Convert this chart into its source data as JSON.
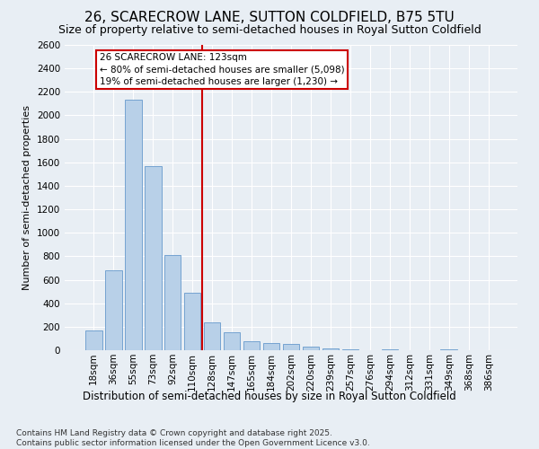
{
  "title": "26, SCARECROW LANE, SUTTON COLDFIELD, B75 5TU",
  "subtitle": "Size of property relative to semi-detached houses in Royal Sutton Coldfield",
  "xlabel": "Distribution of semi-detached houses by size in Royal Sutton Coldfield",
  "ylabel": "Number of semi-detached properties",
  "footnote": "Contains HM Land Registry data © Crown copyright and database right 2025.\nContains public sector information licensed under the Open Government Licence v3.0.",
  "categories": [
    "18sqm",
    "36sqm",
    "55sqm",
    "73sqm",
    "92sqm",
    "110sqm",
    "128sqm",
    "147sqm",
    "165sqm",
    "184sqm",
    "202sqm",
    "220sqm",
    "239sqm",
    "257sqm",
    "276sqm",
    "294sqm",
    "312sqm",
    "331sqm",
    "349sqm",
    "368sqm",
    "386sqm"
  ],
  "values": [
    170,
    680,
    2130,
    1570,
    810,
    490,
    240,
    150,
    80,
    60,
    50,
    30,
    15,
    5,
    0,
    5,
    0,
    0,
    10,
    0,
    0
  ],
  "bar_color": "#b8d0e8",
  "bar_edge_color": "#6699cc",
  "vline_color": "#cc0000",
  "vline_pos": 5.5,
  "annotation_title": "26 SCARECROW LANE: 123sqm",
  "annotation_line1": "← 80% of semi-detached houses are smaller (5,098)",
  "annotation_line2": "19% of semi-detached houses are larger (1,230) →",
  "annotation_box_color": "#cc0000",
  "ylim": [
    0,
    2600
  ],
  "yticks": [
    0,
    200,
    400,
    600,
    800,
    1000,
    1200,
    1400,
    1600,
    1800,
    2000,
    2200,
    2400,
    2600
  ],
  "background_color": "#e8eef4",
  "plot_bg_color": "#e8eef4",
  "title_fontsize": 11,
  "subtitle_fontsize": 9,
  "xlabel_fontsize": 8.5,
  "ylabel_fontsize": 8,
  "tick_fontsize": 7.5,
  "annot_fontsize": 7.5,
  "footnote_fontsize": 6.5
}
